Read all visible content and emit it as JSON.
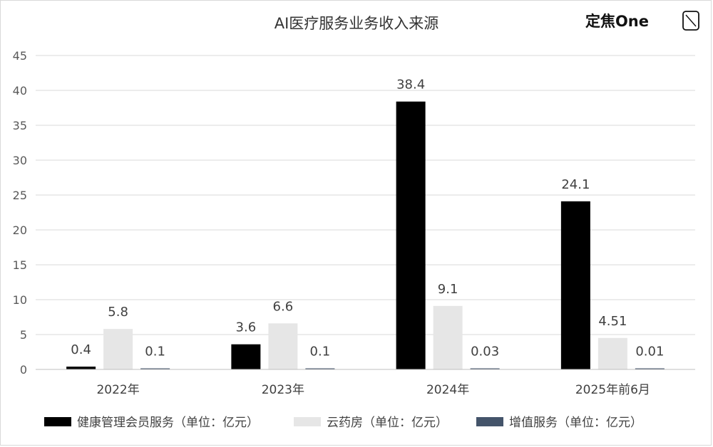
{
  "chart_data": {
    "type": "bar",
    "title": "AI医疗服务业务收入来源",
    "categories": [
      "2022年",
      "2023年",
      "2024年",
      "2025年前6月"
    ],
    "series": [
      {
        "name": "健康管理会员服务（单位：亿元）",
        "values": [
          0.4,
          3.6,
          38.4,
          24.1
        ],
        "labels": [
          "0.4",
          "3.6",
          "38.4",
          "24.1"
        ],
        "color": "#000000"
      },
      {
        "name": "云药房（单位：亿元）",
        "values": [
          5.8,
          6.6,
          9.1,
          4.51
        ],
        "labels": [
          "5.8",
          "6.6",
          "9.1",
          "4.51"
        ],
        "color": "#e6e6e6"
      },
      {
        "name": "增值服务（单位：亿元）",
        "values": [
          0.1,
          0.1,
          0.03,
          0.01
        ],
        "labels": [
          "0.1",
          "0.1",
          "0.03",
          "0.01"
        ],
        "color": "#44546a"
      }
    ],
    "ylim": [
      0,
      45
    ],
    "yticks": [
      0,
      5,
      10,
      15,
      20,
      25,
      30,
      35,
      40,
      45
    ],
    "grid": true,
    "legend_position": "bottom"
  },
  "watermark": {
    "text": "定焦One"
  }
}
